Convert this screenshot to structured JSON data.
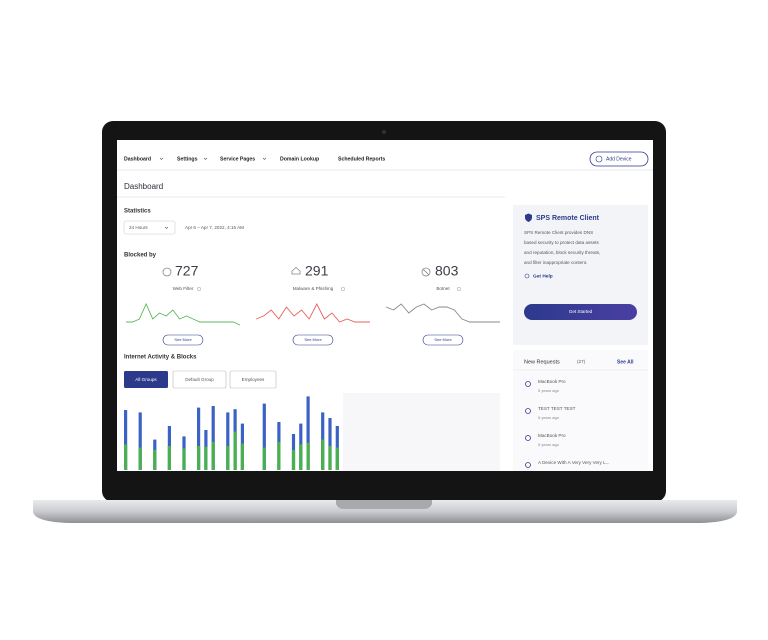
{
  "nav": {
    "items": [
      "Dashboard",
      "Settings",
      "Service Pages",
      "Domain Lookup",
      "Scheduled Reports"
    ],
    "button": "Add Device"
  },
  "page_title": "Dashboard",
  "statistics": {
    "title": "Statistics",
    "range": "24 Hours",
    "date": "Apr 6 – Apr 7, 2022, 4:15 AM"
  },
  "blocked_by": {
    "title": "Blocked by",
    "cards": [
      {
        "value": 727,
        "label": "Web Filter",
        "button": "See More",
        "color": "#5cb85c",
        "trend": [
          2,
          2,
          3,
          8,
          3,
          5,
          4,
          6,
          3,
          4,
          3,
          2,
          2,
          2,
          2,
          2,
          2,
          1
        ]
      },
      {
        "value": 291,
        "label": "Malware & Phishing",
        "button": "See More",
        "color": "#e8625a",
        "trend": [
          3,
          4,
          6,
          3,
          7,
          4,
          6,
          3,
          8,
          3,
          5,
          2,
          3,
          2,
          2,
          2
        ]
      },
      {
        "value": 803,
        "label": "Botnet",
        "button": "See More",
        "color": "#8a8a8a",
        "trend": [
          7,
          6,
          8,
          5,
          7,
          8,
          6,
          7,
          7,
          6,
          3,
          2,
          2,
          2,
          2,
          2
        ]
      }
    ]
  },
  "activity": {
    "title": "Internet Activity & Blocks",
    "tabs": [
      "All Groups",
      "Default Group",
      "Employees"
    ],
    "blue_color": "#3b63c4",
    "green_color": "#49b050",
    "blue": [
      75,
      null,
      72,
      null,
      38,
      null,
      55,
      null,
      42,
      null,
      78,
      50,
      80,
      null,
      72,
      76,
      58,
      null,
      null,
      83,
      null,
      60,
      null,
      45,
      58,
      92,
      null,
      72,
      65,
      55
    ],
    "green": [
      32,
      null,
      28,
      null,
      25,
      null,
      30,
      null,
      27,
      null,
      30,
      29,
      35,
      null,
      30,
      48,
      33,
      null,
      null,
      28,
      null,
      35,
      null,
      25,
      32,
      34,
      null,
      38,
      30,
      28
    ]
  },
  "remote_client": {
    "title": "SPS Remote Client",
    "description": [
      "SPS Remote Client provides DNS",
      "based security to protect data assets",
      "and reputation, block security threats,",
      "and filter inappropriate content."
    ],
    "link": "Get Help",
    "button": "Get Started"
  },
  "requests": {
    "title": "New Requests",
    "count": "(27)",
    "link": "See All",
    "items": [
      {
        "name": "MacBook Pro",
        "time": "5 years ago"
      },
      {
        "name": "TEST TEST TEST",
        "time": "5 years ago"
      },
      {
        "name": "MacBook Pro",
        "time": "5 years ago"
      },
      {
        "name": "A Device With A Very Very Very L..."
      }
    ]
  }
}
